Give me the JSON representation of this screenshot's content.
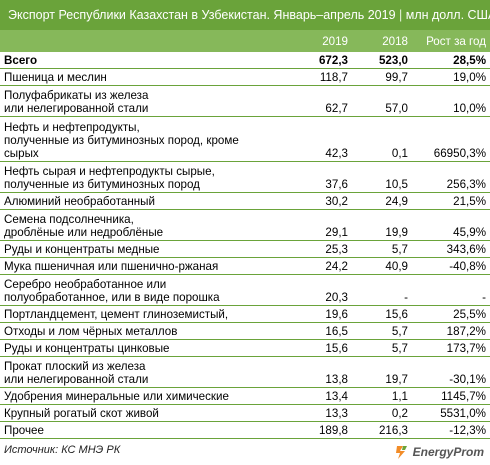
{
  "title": "Экспорт Республики Казахстан в Узбекистан. Январь–апрель 2019",
  "title_separator": "|",
  "title_units": "млн долл. США",
  "columns": [
    "2019",
    "2018",
    "Рост за год"
  ],
  "rows": [
    {
      "lines": [
        "Всего"
      ],
      "v2019": "672,3",
      "v2018": "523,0",
      "growth": "28,5%",
      "total": true
    },
    {
      "lines": [
        "Пшеница и меслин"
      ],
      "v2019": "118,7",
      "v2018": "99,7",
      "growth": "19,0%"
    },
    {
      "lines": [
        "Полуфабрикаты из железа",
        "или нелегированной стали"
      ],
      "v2019": "62,7",
      "v2018": "57,0",
      "growth": "10,0%"
    },
    {
      "lines": [
        "Нефть и нефтепродукты,",
        "полученные из битуминозных пород, кроме",
        "сырых"
      ],
      "v2019": "42,3",
      "v2018": "0,1",
      "growth": "66950,3%"
    },
    {
      "lines": [
        "Нефть сырая и нефтепродукты сырые,",
        "полученные из битуминозных пород"
      ],
      "v2019": "37,6",
      "v2018": "10,5",
      "growth": "256,3%"
    },
    {
      "lines": [
        "Алюминий необработанный"
      ],
      "v2019": "30,2",
      "v2018": "24,9",
      "growth": "21,5%"
    },
    {
      "lines": [
        "Семена подсолнечника,",
        "дроблёные или недроблёные"
      ],
      "v2019": "29,1",
      "v2018": "19,9",
      "growth": "45,9%"
    },
    {
      "lines": [
        "Руды и концентраты медные"
      ],
      "v2019": "25,3",
      "v2018": "5,7",
      "growth": "343,6%"
    },
    {
      "lines": [
        "Мука пшеничная или пшенично-ржаная"
      ],
      "v2019": "24,2",
      "v2018": "40,9",
      "growth": "-40,8%"
    },
    {
      "lines": [
        "Серебро необработанное или",
        "полуобработанное, или в виде порошка"
      ],
      "v2019": "20,3",
      "v2018": "-",
      "growth": "-"
    },
    {
      "lines": [
        "Портландцемент, цемент глиноземистый,"
      ],
      "v2019": "19,6",
      "v2018": "15,6",
      "growth": "25,5%"
    },
    {
      "lines": [
        "Отходы и лом чёрных металлов"
      ],
      "v2019": "16,5",
      "v2018": "5,7",
      "growth": "187,2%"
    },
    {
      "lines": [
        "Руды и концентраты цинковые"
      ],
      "v2019": "15,6",
      "v2018": "5,7",
      "growth": "173,7%"
    },
    {
      "lines": [
        "Прокат плоский из железа",
        "или нелегированной стали"
      ],
      "v2019": "13,8",
      "v2018": "19,7",
      "growth": "-30,1%"
    },
    {
      "lines": [
        "Удобрения минеральные или химические"
      ],
      "v2019": "13,4",
      "v2018": "1,1",
      "growth": "1145,7%"
    },
    {
      "lines": [
        "Крупный рогатый скот живой"
      ],
      "v2019": "13,3",
      "v2018": "0,2",
      "growth": "5531,0%"
    },
    {
      "lines": [
        "Прочее"
      ],
      "v2019": "189,8",
      "v2018": "216,3",
      "growth": "-12,3%"
    }
  ],
  "source": "Источник: КС МНЭ РК",
  "logo_text": "EnergyProm",
  "colors": {
    "header_dark": "#6aa33a",
    "header_light": "#86b85a",
    "logo_orange": "#f28c28"
  }
}
